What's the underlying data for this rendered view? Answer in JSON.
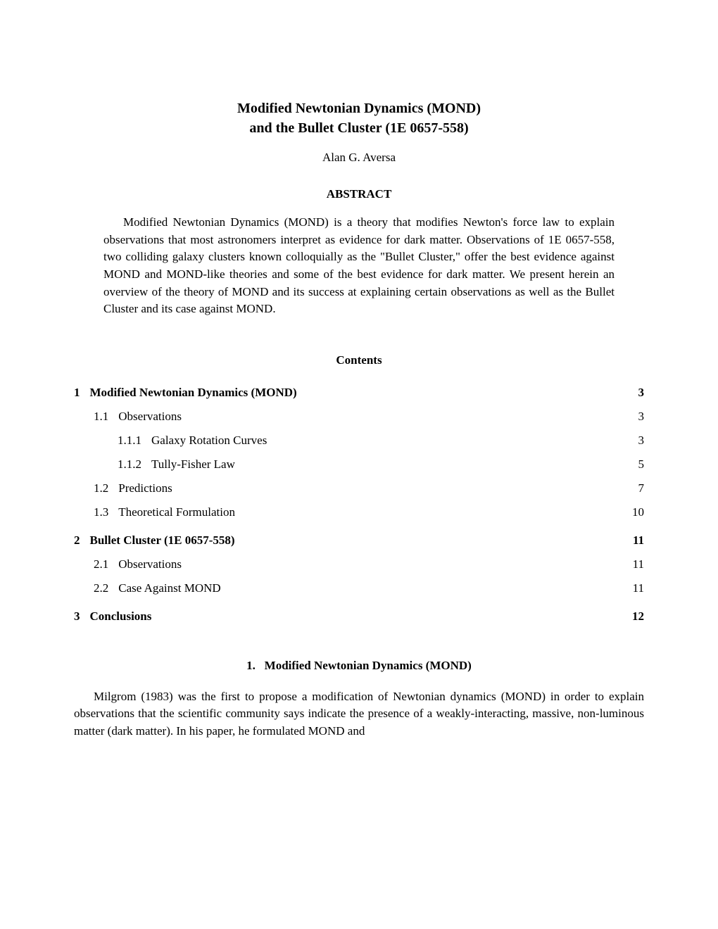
{
  "title_line1": "Modified Newtonian Dynamics (MOND)",
  "title_line2": "and the Bullet Cluster (1E 0657-558)",
  "author": "Alan G. Aversa",
  "abstract_header": "ABSTRACT",
  "abstract_text": "Modified Newtonian Dynamics (MOND) is a theory that modifies Newton's force law to explain observations that most astronomers interpret as evidence for dark matter. Observations of 1E 0657-558, two colliding galaxy clusters known colloquially as the \"Bullet Cluster,\" offer the best evidence against MOND and MOND-like theories and some of the best evidence for dark matter. We present herein an overview of the theory of MOND and its success at explaining certain observations as well as the Bullet Cluster and its case against MOND.",
  "contents_header": "Contents",
  "toc": [
    {
      "level": "section",
      "num": "1",
      "label": "Modified Newtonian Dynamics (MOND)",
      "page": "3",
      "dots": false
    },
    {
      "level": "sub",
      "num": "1.1",
      "label": "Observations",
      "page": "3",
      "dots": true
    },
    {
      "level": "subsub",
      "num": "1.1.1",
      "label": "Galaxy Rotation Curves",
      "page": "3",
      "dots": true
    },
    {
      "level": "subsub",
      "num": "1.1.2",
      "label": "Tully-Fisher Law",
      "page": "5",
      "dots": true
    },
    {
      "level": "sub",
      "num": "1.2",
      "label": "Predictions",
      "page": "7",
      "dots": true
    },
    {
      "level": "sub",
      "num": "1.3",
      "label": "Theoretical Formulation",
      "page": "10",
      "dots": true
    },
    {
      "level": "section",
      "num": "2",
      "label": "Bullet Cluster (1E 0657-558)",
      "page": "11",
      "dots": false
    },
    {
      "level": "sub",
      "num": "2.1",
      "label": "Observations",
      "page": "11",
      "dots": true
    },
    {
      "level": "sub",
      "num": "2.2",
      "label": "Case Against MOND",
      "page": "11",
      "dots": true
    },
    {
      "level": "section",
      "num": "3",
      "label": "Conclusions",
      "page": "12",
      "dots": false
    }
  ],
  "section1_heading_num": "1.",
  "section1_heading_label": "Modified Newtonian Dynamics (MOND)",
  "body_para": "Milgrom (1983) was the first to propose a modification of Newtonian dynamics (MOND) in order to explain observations that the scientific community says indicate the presence of a weakly-interacting, massive, non-luminous matter (dark matter). In his paper, he formulated MOND and"
}
